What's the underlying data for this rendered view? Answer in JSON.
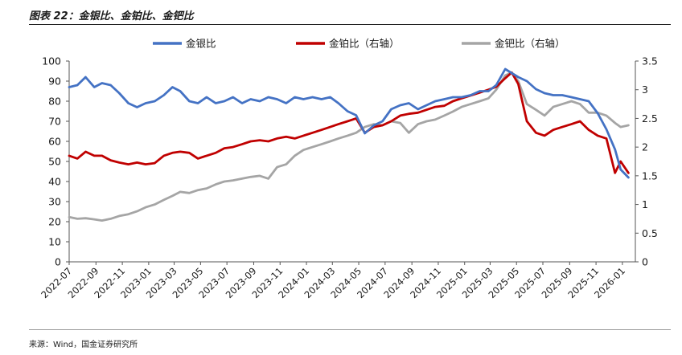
{
  "figure": {
    "title": "图表 22：金银比、金铂比、金钯比",
    "source": "来源：Wind，国金证券研究所"
  },
  "chart_data": {
    "type": "line",
    "x_tick_labels": [
      "2022-07",
      "2022-09",
      "2022-11",
      "2023-01",
      "2023-03",
      "2023-05",
      "2023-07",
      "2023-09",
      "2023-11",
      "2024-01",
      "2024-03",
      "2024-05",
      "2024-07",
      "2024-09",
      "2024-11",
      "2025-01",
      "2025-03",
      "2025-05",
      "2025-07",
      "2025-09",
      "2025-11",
      "2026-01"
    ],
    "x_range": [
      "2022-07-01",
      "2026-01-31"
    ],
    "y_left": {
      "ticks": [
        0,
        10,
        20,
        30,
        40,
        50,
        60,
        70,
        80,
        90,
        100
      ],
      "lim": [
        0,
        100
      ]
    },
    "y_right": {
      "ticks": [
        "0",
        "0.5",
        "1",
        "1.5",
        "2",
        "2.5",
        "3",
        "3.5"
      ],
      "lim": [
        0,
        3.5
      ]
    },
    "legend_position": "top",
    "grid": false,
    "series": [
      {
        "name": "金银比",
        "axis": "left",
        "color": "#4472C4",
        "points": [
          [
            "2022-07-01",
            87
          ],
          [
            "2022-07-20",
            88
          ],
          [
            "2022-08-08",
            92
          ],
          [
            "2022-08-28",
            87
          ],
          [
            "2022-09-15",
            89
          ],
          [
            "2022-10-05",
            88
          ],
          [
            "2022-10-25",
            84
          ],
          [
            "2022-11-15",
            79
          ],
          [
            "2022-12-05",
            77
          ],
          [
            "2022-12-25",
            79
          ],
          [
            "2023-01-15",
            80
          ],
          [
            "2023-02-05",
            83
          ],
          [
            "2023-02-25",
            87
          ],
          [
            "2023-03-15",
            85
          ],
          [
            "2023-04-05",
            80
          ],
          [
            "2023-04-25",
            79
          ],
          [
            "2023-05-15",
            82
          ],
          [
            "2023-06-05",
            79
          ],
          [
            "2023-06-25",
            80
          ],
          [
            "2023-07-15",
            82
          ],
          [
            "2023-08-05",
            79
          ],
          [
            "2023-08-25",
            81
          ],
          [
            "2023-09-15",
            80
          ],
          [
            "2023-10-05",
            82
          ],
          [
            "2023-10-25",
            81
          ],
          [
            "2023-11-15",
            79
          ],
          [
            "2023-12-05",
            82
          ],
          [
            "2023-12-25",
            81
          ],
          [
            "2024-01-15",
            82
          ],
          [
            "2024-02-05",
            81
          ],
          [
            "2024-02-25",
            82
          ],
          [
            "2024-03-15",
            79
          ],
          [
            "2024-04-05",
            75
          ],
          [
            "2024-04-25",
            73
          ],
          [
            "2024-05-15",
            64
          ],
          [
            "2024-06-05",
            68
          ],
          [
            "2024-06-25",
            70
          ],
          [
            "2024-07-15",
            76
          ],
          [
            "2024-08-05",
            78
          ],
          [
            "2024-08-25",
            79
          ],
          [
            "2024-09-15",
            76
          ],
          [
            "2024-10-05",
            78
          ],
          [
            "2024-10-25",
            80
          ],
          [
            "2024-11-15",
            81
          ],
          [
            "2024-12-05",
            82
          ],
          [
            "2024-12-25",
            82
          ],
          [
            "2025-01-15",
            83
          ],
          [
            "2025-02-05",
            85
          ],
          [
            "2025-02-25",
            85
          ],
          [
            "2025-03-15",
            88
          ],
          [
            "2025-04-05",
            96
          ],
          [
            "2025-04-20",
            94
          ],
          [
            "2025-05-05",
            92
          ],
          [
            "2025-05-25",
            90
          ],
          [
            "2025-06-15",
            86
          ],
          [
            "2025-07-05",
            84
          ],
          [
            "2025-07-25",
            83
          ],
          [
            "2025-08-15",
            83
          ],
          [
            "2025-09-05",
            82
          ],
          [
            "2025-09-25",
            81
          ],
          [
            "2025-10-15",
            80
          ],
          [
            "2025-11-05",
            74
          ],
          [
            "2025-11-25",
            66
          ],
          [
            "2025-12-15",
            56
          ],
          [
            "2025-12-28",
            46
          ],
          [
            "2026-01-15",
            42
          ]
        ]
      },
      {
        "name": "金铂比（右轴）",
        "axis": "right",
        "color": "#C00000",
        "points": [
          [
            "2022-07-01",
            1.85
          ],
          [
            "2022-07-20",
            1.8
          ],
          [
            "2022-08-08",
            1.92
          ],
          [
            "2022-08-28",
            1.85
          ],
          [
            "2022-09-15",
            1.85
          ],
          [
            "2022-10-05",
            1.77
          ],
          [
            "2022-10-25",
            1.73
          ],
          [
            "2022-11-15",
            1.7
          ],
          [
            "2022-12-05",
            1.73
          ],
          [
            "2022-12-25",
            1.7
          ],
          [
            "2023-01-15",
            1.72
          ],
          [
            "2023-02-05",
            1.85
          ],
          [
            "2023-02-25",
            1.9
          ],
          [
            "2023-03-15",
            1.92
          ],
          [
            "2023-04-05",
            1.9
          ],
          [
            "2023-04-25",
            1.8
          ],
          [
            "2023-05-15",
            1.85
          ],
          [
            "2023-06-05",
            1.9
          ],
          [
            "2023-06-25",
            1.98
          ],
          [
            "2023-07-15",
            2.0
          ],
          [
            "2023-08-05",
            2.05
          ],
          [
            "2023-08-25",
            2.1
          ],
          [
            "2023-09-15",
            2.12
          ],
          [
            "2023-10-05",
            2.1
          ],
          [
            "2023-10-25",
            2.15
          ],
          [
            "2023-11-15",
            2.18
          ],
          [
            "2023-12-05",
            2.15
          ],
          [
            "2023-12-25",
            2.2
          ],
          [
            "2024-01-15",
            2.25
          ],
          [
            "2024-02-05",
            2.3
          ],
          [
            "2024-02-25",
            2.35
          ],
          [
            "2024-03-15",
            2.4
          ],
          [
            "2024-04-05",
            2.45
          ],
          [
            "2024-04-25",
            2.5
          ],
          [
            "2024-05-15",
            2.25
          ],
          [
            "2024-06-05",
            2.35
          ],
          [
            "2024-06-25",
            2.38
          ],
          [
            "2024-07-15",
            2.45
          ],
          [
            "2024-08-05",
            2.55
          ],
          [
            "2024-08-25",
            2.58
          ],
          [
            "2024-09-15",
            2.6
          ],
          [
            "2024-10-05",
            2.65
          ],
          [
            "2024-10-25",
            2.7
          ],
          [
            "2024-11-15",
            2.72
          ],
          [
            "2024-12-05",
            2.8
          ],
          [
            "2024-12-25",
            2.85
          ],
          [
            "2025-01-15",
            2.9
          ],
          [
            "2025-02-05",
            2.95
          ],
          [
            "2025-02-25",
            3.0
          ],
          [
            "2025-03-15",
            3.05
          ],
          [
            "2025-04-05",
            3.2
          ],
          [
            "2025-04-20",
            3.3
          ],
          [
            "2025-05-05",
            3.1
          ],
          [
            "2025-05-25",
            2.45
          ],
          [
            "2025-06-15",
            2.25
          ],
          [
            "2025-07-05",
            2.2
          ],
          [
            "2025-07-25",
            2.3
          ],
          [
            "2025-08-15",
            2.35
          ],
          [
            "2025-09-05",
            2.4
          ],
          [
            "2025-09-25",
            2.45
          ],
          [
            "2025-10-15",
            2.3
          ],
          [
            "2025-11-05",
            2.2
          ],
          [
            "2025-11-25",
            2.15
          ],
          [
            "2025-12-15",
            1.55
          ],
          [
            "2025-12-28",
            1.75
          ],
          [
            "2026-01-15",
            1.55
          ]
        ]
      },
      {
        "name": "金钯比（右轴）",
        "axis": "right",
        "color": "#A5A5A5",
        "points": [
          [
            "2022-07-01",
            0.78
          ],
          [
            "2022-07-20",
            0.75
          ],
          [
            "2022-08-08",
            0.76
          ],
          [
            "2022-08-28",
            0.74
          ],
          [
            "2022-09-15",
            0.72
          ],
          [
            "2022-10-05",
            0.75
          ],
          [
            "2022-10-25",
            0.8
          ],
          [
            "2022-11-15",
            0.83
          ],
          [
            "2022-12-05",
            0.88
          ],
          [
            "2022-12-25",
            0.95
          ],
          [
            "2023-01-15",
            1.0
          ],
          [
            "2023-02-05",
            1.08
          ],
          [
            "2023-02-25",
            1.15
          ],
          [
            "2023-03-15",
            1.22
          ],
          [
            "2023-04-05",
            1.2
          ],
          [
            "2023-04-25",
            1.25
          ],
          [
            "2023-05-15",
            1.28
          ],
          [
            "2023-06-05",
            1.35
          ],
          [
            "2023-06-25",
            1.4
          ],
          [
            "2023-07-15",
            1.42
          ],
          [
            "2023-08-05",
            1.45
          ],
          [
            "2023-08-25",
            1.48
          ],
          [
            "2023-09-15",
            1.5
          ],
          [
            "2023-10-05",
            1.45
          ],
          [
            "2023-10-25",
            1.65
          ],
          [
            "2023-11-15",
            1.7
          ],
          [
            "2023-12-05",
            1.85
          ],
          [
            "2023-12-25",
            1.95
          ],
          [
            "2024-01-15",
            2.0
          ],
          [
            "2024-02-05",
            2.05
          ],
          [
            "2024-02-25",
            2.1
          ],
          [
            "2024-03-15",
            2.15
          ],
          [
            "2024-04-05",
            2.2
          ],
          [
            "2024-04-25",
            2.25
          ],
          [
            "2024-05-15",
            2.35
          ],
          [
            "2024-06-05",
            2.4
          ],
          [
            "2024-06-25",
            2.38
          ],
          [
            "2024-07-15",
            2.45
          ],
          [
            "2024-08-05",
            2.42
          ],
          [
            "2024-08-25",
            2.25
          ],
          [
            "2024-09-15",
            2.4
          ],
          [
            "2024-10-05",
            2.45
          ],
          [
            "2024-10-25",
            2.48
          ],
          [
            "2024-11-15",
            2.55
          ],
          [
            "2024-12-05",
            2.62
          ],
          [
            "2024-12-25",
            2.7
          ],
          [
            "2025-01-15",
            2.75
          ],
          [
            "2025-02-05",
            2.8
          ],
          [
            "2025-02-25",
            2.85
          ],
          [
            "2025-03-15",
            3.0
          ],
          [
            "2025-04-05",
            3.25
          ],
          [
            "2025-04-20",
            3.3
          ],
          [
            "2025-05-05",
            3.15
          ],
          [
            "2025-05-25",
            2.75
          ],
          [
            "2025-06-15",
            2.65
          ],
          [
            "2025-07-05",
            2.55
          ],
          [
            "2025-07-25",
            2.7
          ],
          [
            "2025-08-15",
            2.75
          ],
          [
            "2025-09-05",
            2.8
          ],
          [
            "2025-09-25",
            2.75
          ],
          [
            "2025-10-15",
            2.6
          ],
          [
            "2025-11-05",
            2.6
          ],
          [
            "2025-11-25",
            2.55
          ],
          [
            "2025-12-15",
            2.42
          ],
          [
            "2025-12-28",
            2.35
          ],
          [
            "2026-01-15",
            2.38
          ]
        ]
      }
    ]
  }
}
